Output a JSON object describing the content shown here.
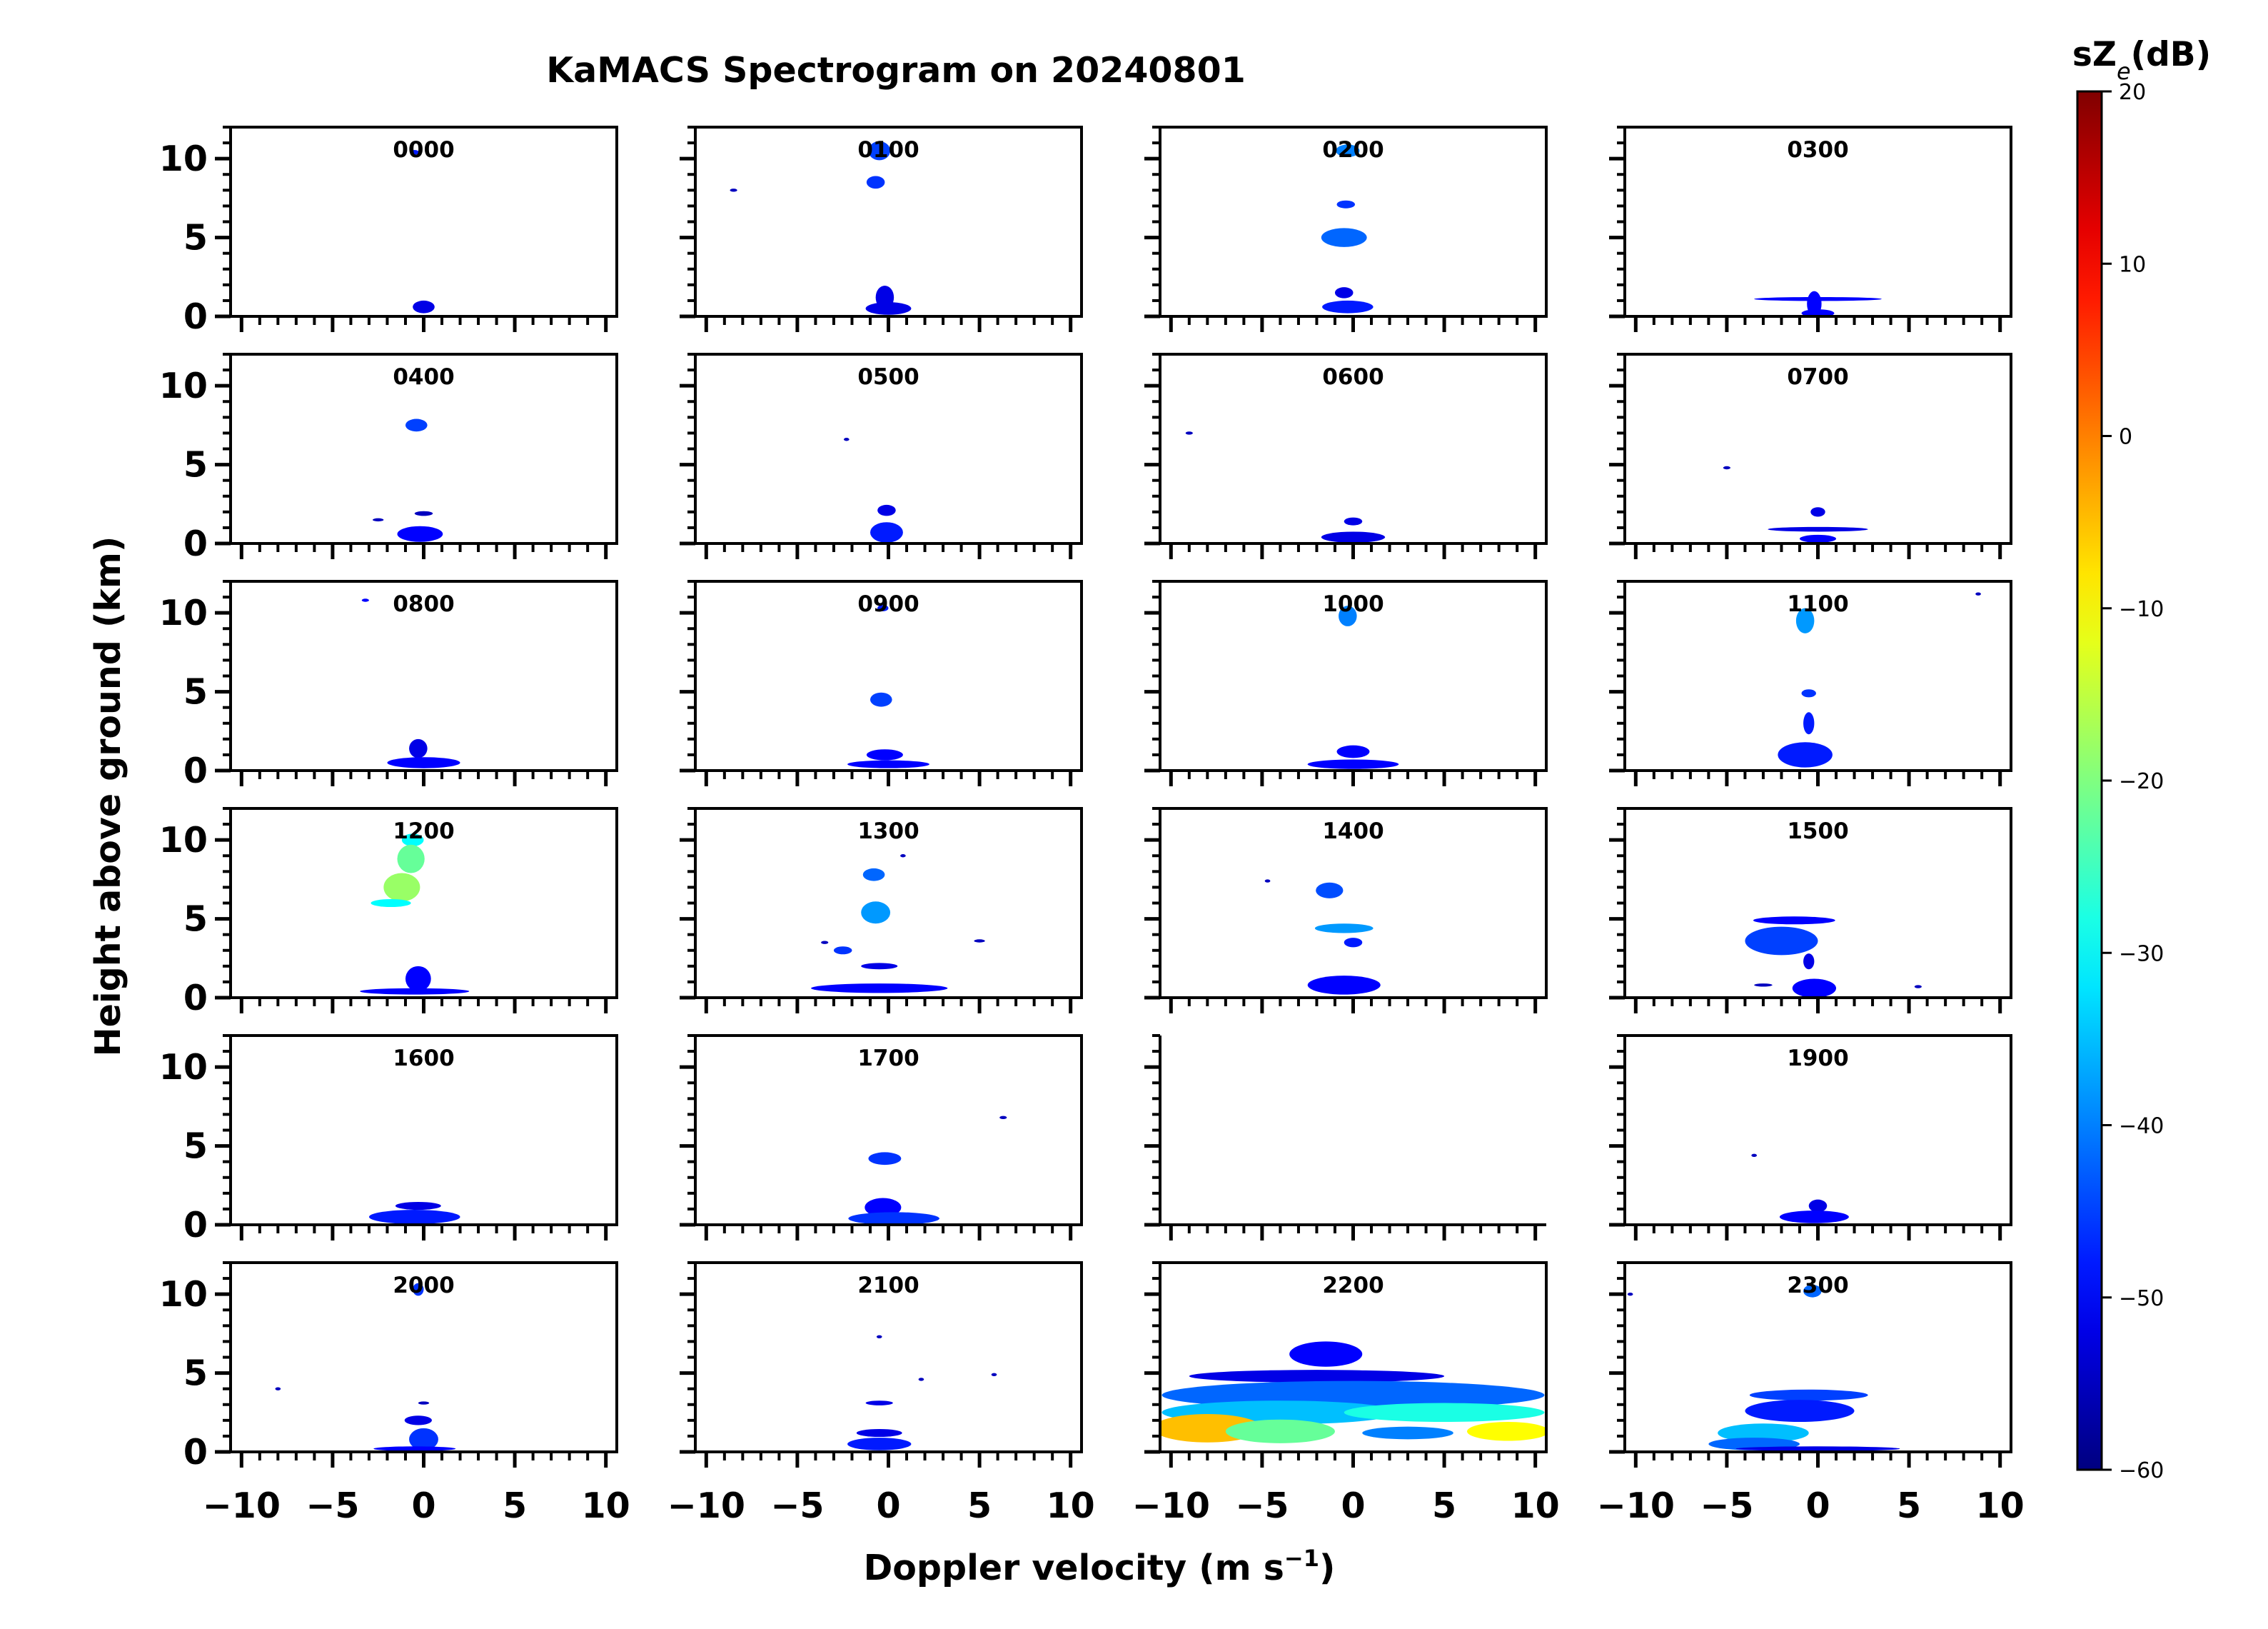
{
  "chart_data": {
    "type": "spectrogram-grid",
    "title": "KaMACS Spectrogram on 20240801",
    "xlabel": "Doppler velocity (m s$^{-1}$)",
    "ylabel": "Height above ground (km)",
    "xlim": [
      -10.6,
      10.6
    ],
    "ylim": [
      0,
      12
    ],
    "x_ticks": [
      -10,
      -5,
      0,
      5,
      10
    ],
    "x_ticklabels": [
      "−10",
      "−5",
      "0",
      "5",
      "10"
    ],
    "y_ticks": [
      0,
      5,
      10
    ],
    "y_ticklabels": [
      "0",
      "5",
      "10"
    ],
    "colorbar": {
      "label": "sZ",
      "label_sub": "e",
      "label_unit": "(dB)",
      "range": [
        -60,
        20
      ],
      "ticks": [
        20,
        10,
        0,
        -10,
        -20,
        -30,
        -40,
        -50,
        -60
      ],
      "ticklabels": [
        "20",
        "10",
        "0",
        "−10",
        "−20",
        "−30",
        "−40",
        "−50",
        "−60"
      ],
      "colormap": "jet"
    },
    "panels": [
      {
        "label": "0000",
        "echoes": [
          {
            "v": -0.5,
            "h": 10.4,
            "w": 0.5,
            "hh": 0.3,
            "dB": -48
          },
          {
            "v": 0,
            "h": 0.6,
            "w": 1.2,
            "hh": 0.8,
            "dB": -52
          }
        ]
      },
      {
        "label": "0100",
        "echoes": [
          {
            "v": -0.5,
            "h": 10.5,
            "w": 1.2,
            "hh": 1.2,
            "dB": -45
          },
          {
            "v": -0.7,
            "h": 8.5,
            "w": 1,
            "hh": 0.8,
            "dB": -46
          },
          {
            "v": -8.5,
            "h": 8,
            "w": 0.4,
            "hh": 0.2,
            "dB": -55
          },
          {
            "v": -0.2,
            "h": 1.2,
            "w": 1,
            "hh": 1.5,
            "dB": -52
          },
          {
            "v": 0,
            "h": 0.5,
            "w": 2.5,
            "hh": 0.8,
            "dB": -52
          }
        ]
      },
      {
        "label": "0200",
        "echoes": [
          {
            "v": -0.3,
            "h": 10.5,
            "w": 1.3,
            "hh": 0.8,
            "dB": -40
          },
          {
            "v": -0.4,
            "h": 7.1,
            "w": 1,
            "hh": 0.5,
            "dB": -46
          },
          {
            "v": -0.5,
            "h": 5,
            "w": 2.5,
            "hh": 1.2,
            "dB": -42
          },
          {
            "v": -0.5,
            "h": 1.5,
            "w": 1,
            "hh": 0.7,
            "dB": -52
          },
          {
            "v": -0.3,
            "h": 0.6,
            "w": 2.8,
            "hh": 0.8,
            "dB": -48
          }
        ]
      },
      {
        "label": "0300",
        "echoes": [
          {
            "v": 0,
            "h": 1.1,
            "w": 7,
            "hh": 0.25,
            "dB": -50
          },
          {
            "v": -0.2,
            "h": 0.8,
            "w": 0.8,
            "hh": 1.6,
            "dB": -50
          },
          {
            "v": 0,
            "h": 0.2,
            "w": 1.8,
            "hh": 0.5,
            "dB": -50
          }
        ]
      },
      {
        "label": "0400",
        "echoes": [
          {
            "v": -0.4,
            "h": 7.5,
            "w": 1.2,
            "hh": 0.8,
            "dB": -45
          },
          {
            "v": -2.5,
            "h": 1.5,
            "w": 0.6,
            "hh": 0.2,
            "dB": -55
          },
          {
            "v": 0,
            "h": 1.9,
            "w": 1,
            "hh": 0.3,
            "dB": -55
          },
          {
            "v": -0.2,
            "h": 0.6,
            "w": 2.5,
            "hh": 1,
            "dB": -50
          }
        ]
      },
      {
        "label": "0500",
        "echoes": [
          {
            "v": -2.3,
            "h": 6.6,
            "w": 0.3,
            "hh": 0.2,
            "dB": -55
          },
          {
            "v": -0.1,
            "h": 2.1,
            "w": 1,
            "hh": 0.7,
            "dB": -52
          },
          {
            "v": -0.1,
            "h": 0.7,
            "w": 1.8,
            "hh": 1.3,
            "dB": -48
          }
        ]
      },
      {
        "label": "0600",
        "echoes": [
          {
            "v": -9,
            "h": 7,
            "w": 0.4,
            "hh": 0.2,
            "dB": -55
          },
          {
            "v": 0,
            "h": 1.4,
            "w": 1,
            "hh": 0.5,
            "dB": -52
          },
          {
            "v": 0,
            "h": 0.4,
            "w": 3.5,
            "hh": 0.7,
            "dB": -52
          }
        ]
      },
      {
        "label": "0700",
        "echoes": [
          {
            "v": -5,
            "h": 4.8,
            "w": 0.4,
            "hh": 0.2,
            "dB": -55
          },
          {
            "v": 0,
            "h": 2,
            "w": 0.8,
            "hh": 0.6,
            "dB": -52
          },
          {
            "v": 0,
            "h": 0.9,
            "w": 5.5,
            "hh": 0.3,
            "dB": -52
          },
          {
            "v": 0,
            "h": 0.3,
            "w": 2,
            "hh": 0.5,
            "dB": -50
          }
        ]
      },
      {
        "label": "0800",
        "echoes": [
          {
            "v": -3.2,
            "h": 10.8,
            "w": 0.4,
            "hh": 0.2,
            "dB": -50
          },
          {
            "v": -0.3,
            "h": 1.4,
            "w": 1,
            "hh": 1.2,
            "dB": -52
          },
          {
            "v": 0,
            "h": 0.5,
            "w": 4,
            "hh": 0.7,
            "dB": -50
          }
        ]
      },
      {
        "label": "0900",
        "echoes": [
          {
            "v": -0.3,
            "h": 10.3,
            "w": 0.6,
            "hh": 0.4,
            "dB": -48
          },
          {
            "v": -0.4,
            "h": 4.5,
            "w": 1.2,
            "hh": 0.9,
            "dB": -45
          },
          {
            "v": -0.2,
            "h": 1,
            "w": 2,
            "hh": 0.7,
            "dB": -50
          },
          {
            "v": 0,
            "h": 0.4,
            "w": 4.5,
            "hh": 0.5,
            "dB": -50
          }
        ]
      },
      {
        "label": "1000",
        "echoes": [
          {
            "v": -0.3,
            "h": 9.8,
            "w": 1,
            "hh": 1.3,
            "dB": -40
          },
          {
            "v": 0,
            "h": 1.2,
            "w": 1.8,
            "hh": 0.8,
            "dB": -50
          },
          {
            "v": 0,
            "h": 0.4,
            "w": 5,
            "hh": 0.6,
            "dB": -50
          }
        ]
      },
      {
        "label": "1100",
        "echoes": [
          {
            "v": -0.7,
            "h": 9.5,
            "w": 1,
            "hh": 1.6,
            "dB": -38
          },
          {
            "v": -0.5,
            "h": 4.9,
            "w": 0.8,
            "hh": 0.5,
            "dB": -46
          },
          {
            "v": -0.5,
            "h": 3,
            "w": 0.6,
            "hh": 1.4,
            "dB": -48
          },
          {
            "v": -0.7,
            "h": 1,
            "w": 3,
            "hh": 1.6,
            "dB": -48
          },
          {
            "v": 8.8,
            "h": 11.2,
            "w": 0.3,
            "hh": 0.2,
            "dB": -55
          }
        ]
      },
      {
        "label": "1200",
        "echoes": [
          {
            "v": -0.6,
            "h": 10,
            "w": 1.2,
            "hh": 0.8,
            "dB": -30
          },
          {
            "v": -0.7,
            "h": 8.8,
            "w": 1.5,
            "hh": 1.8,
            "dB": -22
          },
          {
            "v": -1.2,
            "h": 7,
            "w": 2,
            "hh": 1.8,
            "dB": -18
          },
          {
            "v": -1.8,
            "h": 6,
            "w": 2.2,
            "hh": 0.5,
            "dB": -30
          },
          {
            "v": -0.3,
            "h": 1.2,
            "w": 1.4,
            "hh": 1.6,
            "dB": -50
          },
          {
            "v": -0.5,
            "h": 0.4,
            "w": 6,
            "hh": 0.4,
            "dB": -50
          }
        ]
      },
      {
        "label": "1300",
        "echoes": [
          {
            "v": -0.8,
            "h": 7.8,
            "w": 1.2,
            "hh": 0.8,
            "dB": -42
          },
          {
            "v": 0.8,
            "h": 9,
            "w": 0.3,
            "hh": 0.2,
            "dB": -55
          },
          {
            "v": -0.7,
            "h": 5.4,
            "w": 1.6,
            "hh": 1.4,
            "dB": -38
          },
          {
            "v": -2.5,
            "h": 3,
            "w": 1,
            "hh": 0.5,
            "dB": -46
          },
          {
            "v": -3.5,
            "h": 3.5,
            "w": 0.4,
            "hh": 0.2,
            "dB": -55
          },
          {
            "v": 5,
            "h": 3.6,
            "w": 0.6,
            "hh": 0.2,
            "dB": -55
          },
          {
            "v": -0.5,
            "h": 2,
            "w": 2,
            "hh": 0.4,
            "dB": -52
          },
          {
            "v": -0.5,
            "h": 0.6,
            "w": 7.5,
            "hh": 0.6,
            "dB": -50
          }
        ]
      },
      {
        "label": "1400",
        "echoes": [
          {
            "v": -4.7,
            "h": 7.4,
            "w": 0.3,
            "hh": 0.2,
            "dB": -55
          },
          {
            "v": -1.3,
            "h": 6.8,
            "w": 1.5,
            "hh": 1,
            "dB": -44
          },
          {
            "v": -0.5,
            "h": 4.4,
            "w": 3.2,
            "hh": 0.6,
            "dB": -38
          },
          {
            "v": 0,
            "h": 3.5,
            "w": 1,
            "hh": 0.6,
            "dB": -48
          },
          {
            "v": -0.5,
            "h": 0.8,
            "w": 4,
            "hh": 1.2,
            "dB": -50
          }
        ]
      },
      {
        "label": "1500",
        "echoes": [
          {
            "v": -1.3,
            "h": 4.9,
            "w": 4.5,
            "hh": 0.5,
            "dB": -50
          },
          {
            "v": -2,
            "h": 3.6,
            "w": 4,
            "hh": 1.8,
            "dB": -45
          },
          {
            "v": -0.5,
            "h": 2.3,
            "w": 0.6,
            "hh": 1,
            "dB": -52
          },
          {
            "v": -3,
            "h": 0.8,
            "w": 1,
            "hh": 0.2,
            "dB": -55
          },
          {
            "v": -0.2,
            "h": 0.6,
            "w": 2.4,
            "hh": 1.2,
            "dB": -50
          },
          {
            "v": 5.5,
            "h": 0.7,
            "w": 0.4,
            "hh": 0.2,
            "dB": -55
          }
        ]
      },
      {
        "label": "1600",
        "echoes": [
          {
            "v": -0.3,
            "h": 1.2,
            "w": 2.5,
            "hh": 0.5,
            "dB": -52
          },
          {
            "v": -0.5,
            "h": 0.5,
            "w": 5,
            "hh": 0.9,
            "dB": -48
          }
        ]
      },
      {
        "label": "1700",
        "echoes": [
          {
            "v": 6.3,
            "h": 6.8,
            "w": 0.4,
            "hh": 0.2,
            "dB": -55
          },
          {
            "v": -0.2,
            "h": 4.2,
            "w": 1.8,
            "hh": 0.8,
            "dB": -46
          },
          {
            "v": -0.3,
            "h": 1.1,
            "w": 2,
            "hh": 1.2,
            "dB": -50
          },
          {
            "v": 0.3,
            "h": 0.4,
            "w": 5,
            "hh": 0.8,
            "dB": -46
          }
        ]
      },
      {
        "label": "",
        "echoes": []
      },
      {
        "label": "1900",
        "echoes": [
          {
            "v": -3.5,
            "h": 4.4,
            "w": 0.3,
            "hh": 0.2,
            "dB": -55
          },
          {
            "v": 0,
            "h": 1.2,
            "w": 1,
            "hh": 0.8,
            "dB": -52
          },
          {
            "v": -0.2,
            "h": 0.5,
            "w": 3.8,
            "hh": 0.8,
            "dB": -50
          }
        ]
      },
      {
        "label": "2000",
        "echoes": [
          {
            "v": -0.3,
            "h": 10.3,
            "w": 0.6,
            "hh": 0.8,
            "dB": -46
          },
          {
            "v": -8,
            "h": 4,
            "w": 0.3,
            "hh": 0.2,
            "dB": -55
          },
          {
            "v": 0,
            "h": 3.1,
            "w": 0.6,
            "hh": 0.2,
            "dB": -55
          },
          {
            "v": -0.3,
            "h": 2,
            "w": 1.5,
            "hh": 0.6,
            "dB": -52
          },
          {
            "v": 0,
            "h": 0.8,
            "w": 1.6,
            "hh": 1.4,
            "dB": -46
          },
          {
            "v": -0.5,
            "h": 0.2,
            "w": 4.5,
            "hh": 0.3,
            "dB": -50
          }
        ]
      },
      {
        "label": "2100",
        "echoes": [
          {
            "v": -0.5,
            "h": 7.3,
            "w": 0.3,
            "hh": 0.2,
            "dB": -55
          },
          {
            "v": 1.8,
            "h": 4.6,
            "w": 0.3,
            "hh": 0.2,
            "dB": -55
          },
          {
            "v": 5.8,
            "h": 4.9,
            "w": 0.3,
            "hh": 0.2,
            "dB": -55
          },
          {
            "v": -0.5,
            "h": 3.1,
            "w": 1.5,
            "hh": 0.3,
            "dB": -52
          },
          {
            "v": -0.5,
            "h": 1.2,
            "w": 2.5,
            "hh": 0.5,
            "dB": -52
          },
          {
            "v": -0.5,
            "h": 0.5,
            "w": 3.5,
            "hh": 0.8,
            "dB": -48
          }
        ]
      },
      {
        "label": "2200",
        "echoes": [
          {
            "v": -1.5,
            "h": 6.2,
            "w": 4,
            "hh": 1.6,
            "dB": -50
          },
          {
            "v": -2,
            "h": 4.8,
            "w": 14,
            "hh": 0.8,
            "dB": -52
          },
          {
            "v": 0,
            "h": 3.6,
            "w": 21,
            "hh": 1.8,
            "dB": -42
          },
          {
            "v": -4,
            "h": 2.5,
            "w": 13,
            "hh": 1.5,
            "dB": -35
          },
          {
            "v": -8,
            "h": 1.5,
            "w": 6,
            "hh": 1.8,
            "dB": -5
          },
          {
            "v": -4,
            "h": 1.3,
            "w": 6,
            "hh": 1.5,
            "dB": -22
          },
          {
            "v": 5,
            "h": 2.5,
            "w": 11,
            "hh": 1.2,
            "dB": -28
          },
          {
            "v": 8.5,
            "h": 1.3,
            "w": 4.5,
            "hh": 1.2,
            "dB": -10
          },
          {
            "v": 3,
            "h": 1.2,
            "w": 5,
            "hh": 0.8,
            "dB": -40
          }
        ]
      },
      {
        "label": "2300",
        "echoes": [
          {
            "v": -0.3,
            "h": 10.2,
            "w": 1,
            "hh": 0.8,
            "dB": -42
          },
          {
            "v": -10.3,
            "h": 10,
            "w": 0.3,
            "hh": 0.2,
            "dB": -55
          },
          {
            "v": -0.5,
            "h": 3.6,
            "w": 6.5,
            "hh": 0.7,
            "dB": -45
          },
          {
            "v": -1,
            "h": 2.6,
            "w": 6,
            "hh": 1.4,
            "dB": -48
          },
          {
            "v": -3,
            "h": 1.2,
            "w": 5,
            "hh": 1.2,
            "dB": -35
          },
          {
            "v": -3.5,
            "h": 0.5,
            "w": 5,
            "hh": 0.8,
            "dB": -42
          },
          {
            "v": 0,
            "h": 0.2,
            "w": 9,
            "hh": 0.3,
            "dB": -52
          }
        ]
      }
    ]
  }
}
